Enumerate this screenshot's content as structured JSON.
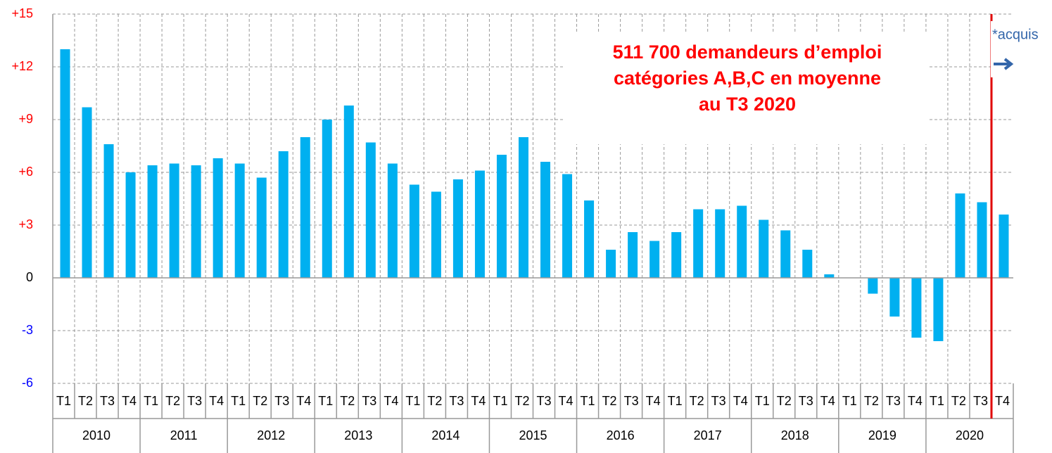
{
  "chart_data": {
    "type": "bar",
    "categories": [
      "T1",
      "T2",
      "T3",
      "T4",
      "T1",
      "T2",
      "T3",
      "T4",
      "T1",
      "T2",
      "T3",
      "T4",
      "T1",
      "T2",
      "T3",
      "T4",
      "T1",
      "T2",
      "T3",
      "T4",
      "T1",
      "T2",
      "T3",
      "T4",
      "T1",
      "T2",
      "T3",
      "T4",
      "T1",
      "T2",
      "T3",
      "T4",
      "T1",
      "T2",
      "T3",
      "T4",
      "T1",
      "T2",
      "T3",
      "T4",
      "T1",
      "T2",
      "T3",
      "T4"
    ],
    "years": [
      "2010",
      "2011",
      "2012",
      "2013",
      "2014",
      "2015",
      "2016",
      "2017",
      "2018",
      "2019",
      "2020"
    ],
    "values": [
      13.0,
      9.7,
      7.6,
      6.0,
      6.4,
      6.5,
      6.4,
      6.8,
      6.5,
      5.7,
      7.2,
      8.0,
      9.0,
      9.8,
      7.7,
      6.5,
      5.3,
      4.9,
      5.6,
      6.1,
      7.0,
      8.0,
      6.6,
      5.9,
      4.4,
      1.6,
      2.6,
      2.1,
      2.6,
      3.9,
      3.9,
      4.1,
      3.3,
      2.7,
      1.6,
      0.2,
      0,
      -0.9,
      -2.2,
      -3.4,
      -3.6,
      4.8,
      4.3,
      3.6
    ],
    "color": "#00b0f0",
    "ylim": [
      -6,
      15
    ],
    "yticks": [
      {
        "value": 15,
        "label": "+15"
      },
      {
        "value": 12,
        "label": "+12"
      },
      {
        "value": 9,
        "label": "+9"
      },
      {
        "value": 6,
        "label": "+6"
      },
      {
        "value": 3,
        "label": "+3"
      },
      0,
      -3,
      -6
    ],
    "ytick_colors": {
      "positive": "#ff0000",
      "zero": "#000000",
      "negative": "#0000ff"
    },
    "grid": true,
    "annotation": [
      "511 700 demandeurs d’emploi",
      "catégories A,B,C en moyenne",
      "au T3 2020"
    ],
    "annotation_color": "#ff0000",
    "note": "*acquis",
    "note_color": "#3366aa",
    "marker_color": "#e00000"
  }
}
